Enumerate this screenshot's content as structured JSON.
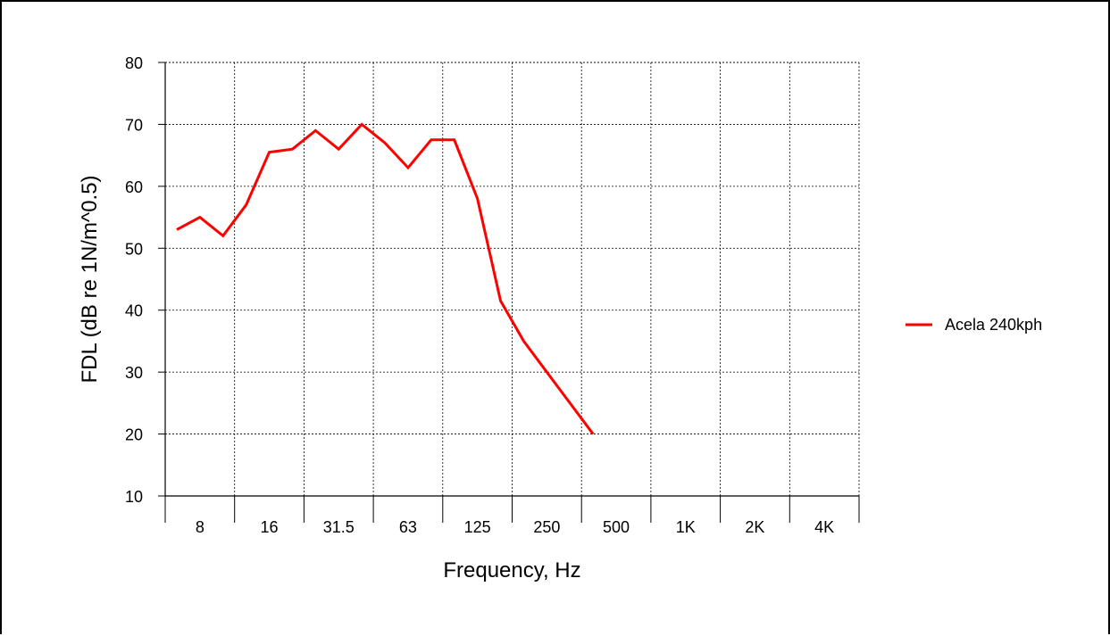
{
  "chart_data": {
    "type": "line",
    "title": "",
    "xlabel": "Frequency, Hz",
    "ylabel": "FDL (dB re 1N/m^0.5)",
    "ylim": [
      10,
      80
    ],
    "yticks": [
      10,
      20,
      30,
      40,
      50,
      60,
      70,
      80
    ],
    "categories": [
      "8",
      "16",
      "31.5",
      "63",
      "125",
      "250",
      "500",
      "1K",
      "2K",
      "4K"
    ],
    "grid": true,
    "legend_position": "right",
    "series": [
      {
        "name": "Acela 240kph",
        "color": "#ff0000",
        "x_unit": "one-third-octave band index (0 = 6.3 Hz)",
        "points": [
          {
            "band": 0,
            "y": 53
          },
          {
            "band": 1,
            "y": 55
          },
          {
            "band": 2,
            "y": 52
          },
          {
            "band": 3,
            "y": 57
          },
          {
            "band": 4,
            "y": 65.5
          },
          {
            "band": 5,
            "y": 66
          },
          {
            "band": 6,
            "y": 69
          },
          {
            "band": 7,
            "y": 66
          },
          {
            "band": 8,
            "y": 70
          },
          {
            "band": 9,
            "y": 67
          },
          {
            "band": 10,
            "y": 63
          },
          {
            "band": 11,
            "y": 67.5
          },
          {
            "band": 12,
            "y": 67.5
          },
          {
            "band": 13,
            "y": 58
          },
          {
            "band": 14,
            "y": 41.5
          },
          {
            "band": 15,
            "y": 35
          },
          {
            "band": 18,
            "y": 20
          }
        ]
      }
    ]
  }
}
